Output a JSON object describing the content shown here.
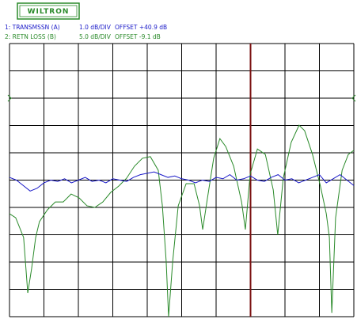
{
  "logo": "WILTRON",
  "chart_data": {
    "type": "line",
    "xlim": [
      0,
      10
    ],
    "ylim": [
      0,
      10
    ],
    "xticks": [
      0,
      1,
      2,
      3,
      4,
      5,
      6,
      7,
      8,
      9,
      10
    ],
    "yticks": [
      0,
      1,
      2,
      3,
      4,
      5,
      6,
      7,
      8,
      9,
      10
    ],
    "grid": true,
    "marker_x": 7,
    "marker_color": "#7a1010",
    "series": [
      {
        "name": "1: TRANSMSSN (A)",
        "scale": "1.0 dB/DIV",
        "offset": "OFFSET +40.9 dB",
        "color": "#1a1ac8",
        "x": [
          0,
          0.2,
          0.4,
          0.6,
          0.8,
          1,
          1.2,
          1.4,
          1.6,
          1.8,
          2,
          2.2,
          2.4,
          2.6,
          2.8,
          3,
          3.2,
          3.4,
          3.6,
          3.8,
          4,
          4.2,
          4.4,
          4.6,
          4.8,
          5,
          5.2,
          5.4,
          5.6,
          5.8,
          6,
          6.2,
          6.4,
          6.6,
          6.8,
          7,
          7.2,
          7.4,
          7.6,
          7.8,
          8,
          8.2,
          8.4,
          8.6,
          8.8,
          9,
          9.2,
          9.4,
          9.6,
          9.8,
          10
        ],
        "values": [
          5.1,
          5.0,
          4.8,
          4.6,
          4.7,
          4.9,
          5.0,
          4.95,
          5.05,
          4.9,
          5.0,
          5.1,
          4.95,
          5.0,
          4.9,
          5.05,
          5.0,
          4.95,
          5.1,
          5.2,
          5.25,
          5.3,
          5.2,
          5.1,
          5.15,
          5.05,
          5.0,
          4.9,
          5.0,
          4.95,
          5.1,
          5.05,
          5.2,
          5.0,
          5.05,
          5.15,
          5.0,
          4.95,
          5.1,
          5.2,
          5.0,
          5.05,
          4.9,
          5.0,
          5.1,
          5.2,
          4.9,
          5.05,
          5.2,
          5.0,
          4.8
        ]
      },
      {
        "name": "2: RETN LOSS (B)",
        "scale": "5.0 dB/DIV",
        "offset": "OFFSET -9.1 dB",
        "color": "#2a8a2a",
        "x": [
          0,
          0.18,
          0.41,
          0.53,
          0.64,
          0.76,
          0.87,
          1.1,
          1.33,
          1.56,
          1.79,
          2.02,
          2.25,
          2.48,
          2.71,
          2.94,
          3.17,
          3.4,
          3.63,
          3.86,
          4.09,
          4.32,
          4.44,
          4.55,
          4.62,
          4.74,
          4.9,
          5.13,
          5.36,
          5.52,
          5.61,
          5.75,
          5.93,
          6.11,
          6.28,
          6.51,
          6.74,
          6.85,
          6.99,
          7.2,
          7.43,
          7.66,
          7.79,
          7.95,
          8.18,
          8.41,
          8.57,
          8.8,
          9.03,
          9.2,
          9.29,
          9.36,
          9.47,
          9.66,
          9.84,
          10
        ],
        "values": [
          3.77,
          3.62,
          2.9,
          0.87,
          1.74,
          2.9,
          3.48,
          3.91,
          4.2,
          4.2,
          4.49,
          4.35,
          4.06,
          4.0,
          4.2,
          4.55,
          4.78,
          5.07,
          5.51,
          5.8,
          5.86,
          5.36,
          4.06,
          2.03,
          0,
          2.03,
          4.06,
          4.87,
          4.87,
          4.06,
          3.19,
          4.35,
          5.8,
          6.52,
          6.23,
          5.51,
          4.2,
          3.19,
          5.22,
          6.14,
          5.94,
          4.64,
          2.99,
          5.07,
          6.38,
          7.01,
          6.81,
          5.94,
          4.78,
          3.77,
          2.9,
          0.14,
          3.62,
          5.36,
          5.94,
          6.09
        ]
      }
    ]
  }
}
